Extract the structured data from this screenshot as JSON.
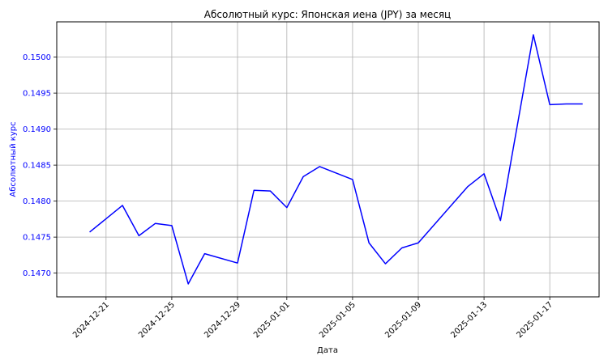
{
  "chart_data": {
    "type": "line",
    "title": "Абсолютный курс: Японская иена (JPY) за месяц",
    "xlabel": "Дата",
    "ylabel": "Абсолютный курс",
    "grid": true,
    "x_tick_labels": [
      "2024-12-21",
      "2024-12-25",
      "2024-12-29",
      "2025-01-01",
      "2025-01-05",
      "2025-01-09",
      "2025-01-13",
      "2025-01-17"
    ],
    "y_tick_labels": [
      "0.1470",
      "0.1475",
      "0.1480",
      "0.1485",
      "0.1490",
      "0.1495",
      "0.1500"
    ],
    "xlim": [
      "2024-12-18",
      "2025-01-20"
    ],
    "ylim": [
      0.14667,
      0.15049
    ],
    "series": [
      {
        "color": "#0000ff",
        "x": [
          "2024-12-20",
          "2024-12-22",
          "2024-12-23",
          "2024-12-24",
          "2024-12-25",
          "2024-12-26",
          "2024-12-27",
          "2024-12-29",
          "2024-12-30",
          "2024-12-31",
          "2025-01-01",
          "2025-01-02",
          "2025-01-03",
          "2025-01-05",
          "2025-01-06",
          "2025-01-07",
          "2025-01-08",
          "2025-01-09",
          "2025-01-12",
          "2025-01-13",
          "2025-01-14",
          "2025-01-16",
          "2025-01-17",
          "2025-01-18",
          "2025-01-19"
        ],
        "y": [
          0.14757,
          0.14794,
          0.14752,
          0.14769,
          0.14766,
          0.14685,
          0.14727,
          0.14714,
          0.14815,
          0.14814,
          0.14791,
          0.14834,
          0.14848,
          0.1483,
          0.14742,
          0.14713,
          0.14735,
          0.14742,
          0.1482,
          0.14838,
          0.14773,
          0.15031,
          0.14934,
          0.14935,
          0.14935
        ]
      }
    ]
  }
}
